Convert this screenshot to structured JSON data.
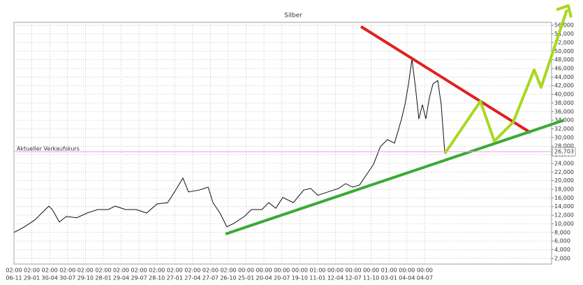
{
  "chart_data": {
    "type": "line",
    "title": "Silber",
    "categories": [
      "06-11",
      "29-01",
      "30-04",
      "30-07",
      "29-10",
      "28-01",
      "29-04",
      "29-07",
      "28-10",
      "27-01",
      "27-04",
      "27-07",
      "26-10",
      "25-01",
      "20-04",
      "20-07",
      "19-10",
      "11-01",
      "12-04",
      "12-07",
      "11-10",
      "03-01",
      "04-04",
      "04-07"
    ],
    "category_times": [
      "02:00",
      "02:00",
      "02:00",
      "02:00",
      "02:00",
      "02:00",
      "02:00",
      "02:00",
      "02:00",
      "02:00",
      "02:00",
      "02:00",
      "02:00",
      "00:00",
      "00:00",
      "00:00",
      "00:00",
      "01:00",
      "00:00",
      "00:00",
      "00:00",
      "01:00",
      "00:00",
      "00:00"
    ],
    "x": [
      0,
      0.59,
      1.17,
      1.56,
      1.95,
      2.15,
      2.54,
      2.93,
      3.52,
      4.1,
      4.69,
      5.28,
      5.67,
      6.25,
      6.84,
      7.43,
      8.01,
      8.6,
      8.99,
      9.46,
      9.77,
      10.36,
      10.87,
      11.14,
      11.53,
      11.92,
      12.31,
      12.9,
      13.29,
      13.88,
      14.27,
      14.66,
      15.05,
      15.64,
      16.22,
      16.61,
      17.01,
      17.59,
      18.18,
      18.57,
      18.96,
      19.35,
      19.74,
      20.13,
      20.52,
      20.91,
      21.31,
      21.7,
      21.89,
      22.09,
      22.28,
      22.48,
      22.67,
      22.87,
      23.06,
      23.26,
      23.46,
      23.73,
      23.92,
      24.12
    ],
    "series": [
      {
        "color": "#111111",
        "values": [
          8000,
          9300,
          10900,
          12500,
          14100,
          13300,
          10400,
          11700,
          11400,
          12500,
          13300,
          13300,
          14100,
          13300,
          13300,
          12500,
          14600,
          14900,
          17400,
          20600,
          17400,
          17800,
          18500,
          14900,
          12500,
          9300,
          10100,
          11700,
          13300,
          13300,
          14900,
          13600,
          16100,
          14900,
          17800,
          18200,
          16600,
          17400,
          18200,
          19300,
          18500,
          19000,
          21400,
          23800,
          27900,
          29500,
          28700,
          34300,
          37600,
          42400,
          48100,
          41600,
          34300,
          37600,
          34300,
          39200,
          42400,
          43200,
          37600,
          26600
        ]
      }
    ],
    "xlim": [
      0,
      30.1
    ],
    "ylim": [
      1000,
      57000
    ],
    "yticks": [
      {
        "value": 2000,
        "label": "2,000"
      },
      {
        "value": 4000,
        "label": "4,000"
      },
      {
        "value": 6000,
        "label": "6,000"
      },
      {
        "value": 8000,
        "label": "8,000"
      },
      {
        "value": 10000,
        "label": "10,000"
      },
      {
        "value": 12000,
        "label": "12,000"
      },
      {
        "value": 14000,
        "label": "14,000"
      },
      {
        "value": 16000,
        "label": "16,000"
      },
      {
        "value": 18000,
        "label": "18,000"
      },
      {
        "value": 20000,
        "label": "20,000"
      },
      {
        "value": 22000,
        "label": "22,000"
      },
      {
        "value": 24000,
        "label": "24,000"
      },
      {
        "value": 26000,
        "label": "26,000"
      },
      {
        "value": 28000,
        "label": "28,000"
      },
      {
        "value": 30000,
        "label": "30,000"
      },
      {
        "value": 32000,
        "label": "32,000"
      },
      {
        "value": 34000,
        "label": "34,000"
      },
      {
        "value": 36000,
        "label": "36,000"
      },
      {
        "value": 38000,
        "label": "38,000"
      },
      {
        "value": 40000,
        "label": "40,000"
      },
      {
        "value": 42000,
        "label": "42,000"
      },
      {
        "value": 44000,
        "label": "44,000"
      },
      {
        "value": 46000,
        "label": "46,000"
      },
      {
        "value": 48000,
        "label": "48,000"
      },
      {
        "value": 50000,
        "label": "50,000"
      },
      {
        "value": 52000,
        "label": "52,000"
      },
      {
        "value": 54000,
        "label": "54,000"
      },
      {
        "value": 56000,
        "label": "56,000"
      }
    ],
    "grid": true,
    "current_price": {
      "name": "Aktueller Verkaufskurs",
      "value": 26703,
      "value_label": "26,703",
      "color": "#e8a8e8"
    }
  }
}
